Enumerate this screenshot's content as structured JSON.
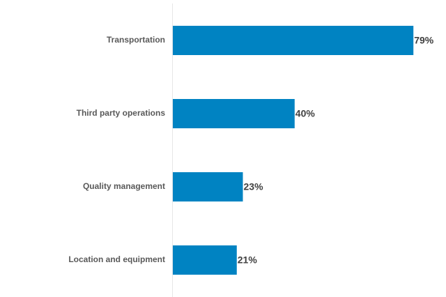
{
  "chart_data": {
    "type": "bar",
    "orientation": "horizontal",
    "categories": [
      "Transportation",
      "Third party operations",
      "Quality management",
      "Location and equipment"
    ],
    "values": [
      79,
      40,
      23,
      21
    ],
    "value_labels": [
      "79%",
      "40%",
      "23%",
      "21%"
    ],
    "color": "#0083c2"
  }
}
